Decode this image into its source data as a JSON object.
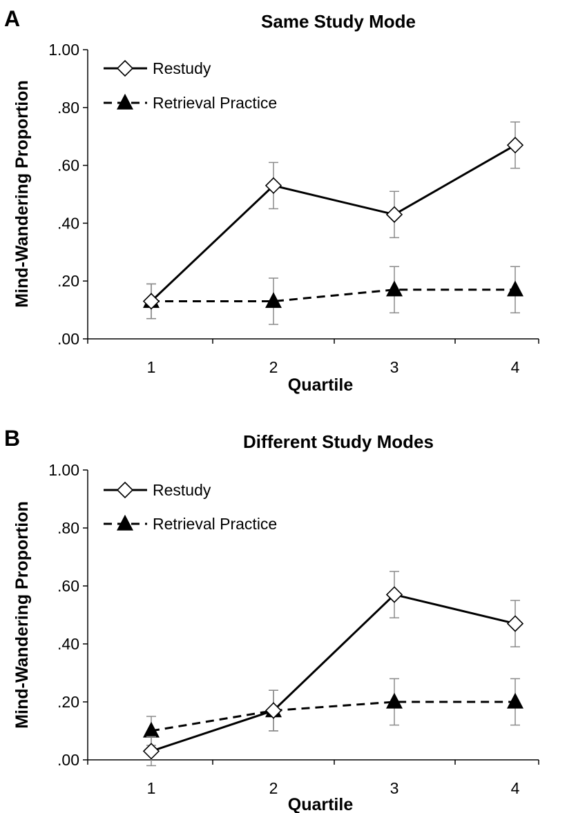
{
  "chart_data": [
    {
      "panel": "A",
      "type": "line",
      "title": "Same Study Mode",
      "xlabel": "Quartile",
      "ylabel": "Mind-Wandering Proportion",
      "categories": [
        "1",
        "2",
        "3",
        "4"
      ],
      "ylim": [
        0,
        1
      ],
      "yticks": [
        ".00",
        ".20",
        ".40",
        ".60",
        ".80",
        "1.00"
      ],
      "legend_position": "top-left",
      "grid": false,
      "series": [
        {
          "name": "Restudy",
          "marker": "open-diamond",
          "line": "solid",
          "values": [
            0.13,
            0.53,
            0.43,
            0.67
          ],
          "errors": [
            0.06,
            0.08,
            0.08,
            0.08
          ]
        },
        {
          "name": "Retrieval Practice",
          "marker": "filled-triangle",
          "line": "dashed",
          "values": [
            0.13,
            0.13,
            0.17,
            0.17
          ],
          "errors": [
            0.06,
            0.08,
            0.08,
            0.08
          ]
        }
      ]
    },
    {
      "panel": "B",
      "type": "line",
      "title": "Different Study Modes",
      "xlabel": "Quartile",
      "ylabel": "Mind-Wandering Proportion",
      "categories": [
        "1",
        "2",
        "3",
        "4"
      ],
      "ylim": [
        0,
        1
      ],
      "yticks": [
        ".00",
        ".20",
        ".40",
        ".60",
        ".80",
        "1.00"
      ],
      "legend_position": "top-left",
      "grid": false,
      "series": [
        {
          "name": "Restudy",
          "marker": "open-diamond",
          "line": "solid",
          "values": [
            0.03,
            0.17,
            0.57,
            0.47
          ],
          "errors": [
            0.05,
            0.07,
            0.08,
            0.08
          ]
        },
        {
          "name": "Retrieval Practice",
          "marker": "filled-triangle",
          "line": "dashed",
          "values": [
            0.1,
            0.17,
            0.2,
            0.2
          ],
          "errors": [
            0.05,
            0.07,
            0.08,
            0.08
          ]
        }
      ]
    }
  ],
  "colors": {
    "axis": "#000000",
    "error_bar": "#8a8a8a",
    "marker_fill": "#ffffff"
  }
}
